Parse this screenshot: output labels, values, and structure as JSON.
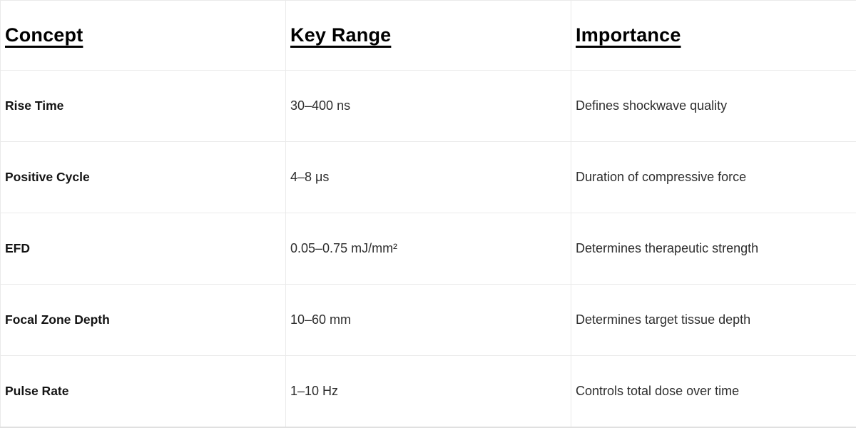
{
  "table": {
    "headers": [
      {
        "label": "Concept"
      },
      {
        "label": "Key Range"
      },
      {
        "label": "Importance"
      }
    ],
    "rows": [
      {
        "cells": [
          "Rise Time",
          "30–400 ns",
          "Defines shockwave quality"
        ]
      },
      {
        "cells": [
          "Positive Cycle",
          "4–8 μs",
          "Duration of compressive force"
        ]
      },
      {
        "cells": [
          "EFD",
          "0.05–0.75 mJ/mm²",
          "Determines therapeutic strength"
        ]
      },
      {
        "cells": [
          "Focal Zone Depth",
          "10–60 mm",
          "Determines target tissue depth"
        ]
      },
      {
        "cells": [
          "Pulse Rate",
          "1–10 Hz",
          "Controls total dose over time"
        ]
      }
    ],
    "colors": {
      "grid_line": "#eaeaea",
      "header_text": "#000000",
      "concept_text": "#141414",
      "body_text": "#2e2e2e",
      "background": "#ffffff"
    }
  }
}
